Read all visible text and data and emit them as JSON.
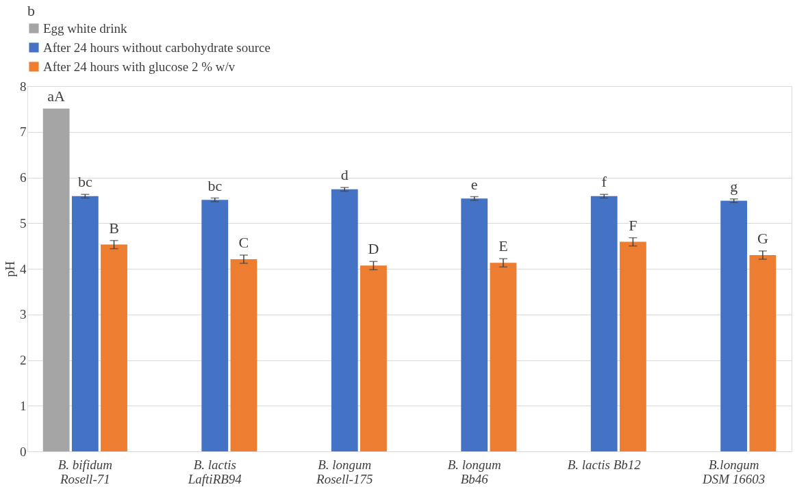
{
  "chart_data": {
    "type": "bar",
    "ylabel": "pH",
    "annotations": [
      "b"
    ],
    "categories": [
      "B. bifidum\nRosell-71",
      "B. lactis\nLaftiRB94",
      "B. longum\nRosell-175",
      "B. longum\nBb46",
      "B. lactis Bb12",
      "B.longum\nDSM 16603"
    ],
    "series": [
      {
        "name": "Egg white drink",
        "color": "#a5a5a5",
        "values": [
          7.51,
          null,
          null,
          null,
          null,
          null
        ],
        "value_labels": [
          "aA",
          null,
          null,
          null,
          null,
          null
        ]
      },
      {
        "name": "After 24 hours without carbohydrate source",
        "color": "#4472c4",
        "values": [
          5.59,
          5.51,
          5.74,
          5.54,
          5.59,
          5.49
        ],
        "errors": [
          0.04,
          0.04,
          0.04,
          0.04,
          0.04,
          0.04
        ],
        "value_labels": [
          "bc",
          "bc",
          "d",
          "e",
          "f",
          "g"
        ]
      },
      {
        "name": "After 24 hours with glucose 2 % w/v",
        "color": "#ed7d31",
        "values": [
          4.53,
          4.21,
          4.07,
          4.13,
          4.59,
          4.3
        ],
        "errors": [
          0.09,
          0.09,
          0.09,
          0.09,
          0.09,
          0.09
        ],
        "value_labels": [
          "B",
          "C",
          "D",
          "E",
          "F",
          "G"
        ]
      }
    ],
    "ylim": [
      0,
      8
    ],
    "yticks": [
      0,
      1,
      2,
      3,
      4,
      5,
      6,
      7,
      8
    ],
    "grid": "y",
    "legend": "top"
  }
}
